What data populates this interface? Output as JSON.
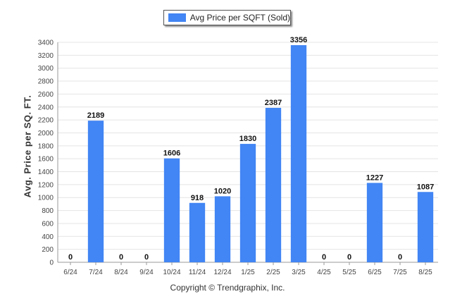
{
  "legend": {
    "label": "Avg Price per SQFT (Sold)"
  },
  "footer": {
    "text": "Copyright © Trendgraphix, Inc."
  },
  "colors": {
    "bar": "#4285f4",
    "grid": "#e4e4e4",
    "axis": "#999999"
  },
  "chart_data": {
    "type": "bar",
    "title": "",
    "xlabel": "",
    "ylabel": "Avg. Price per SQ. FT.",
    "categories": [
      "6/24",
      "7/24",
      "8/24",
      "9/24",
      "10/24",
      "11/24",
      "12/24",
      "1/25",
      "2/25",
      "3/25",
      "4/25",
      "5/25",
      "6/25",
      "7/25",
      "8/25"
    ],
    "series": [
      {
        "name": "Avg Price per SQFT (Sold)",
        "values": [
          0,
          2189,
          0,
          0,
          1606,
          918,
          1020,
          1830,
          2387,
          3356,
          0,
          0,
          1227,
          0,
          1087
        ]
      }
    ],
    "ylim": [
      0,
      3400
    ],
    "yticks": [
      0,
      200,
      400,
      600,
      800,
      1000,
      1200,
      1400,
      1600,
      1800,
      2000,
      2200,
      2400,
      2600,
      2800,
      3000,
      3200,
      3400
    ],
    "grid": true,
    "legend_position": "top-center"
  }
}
